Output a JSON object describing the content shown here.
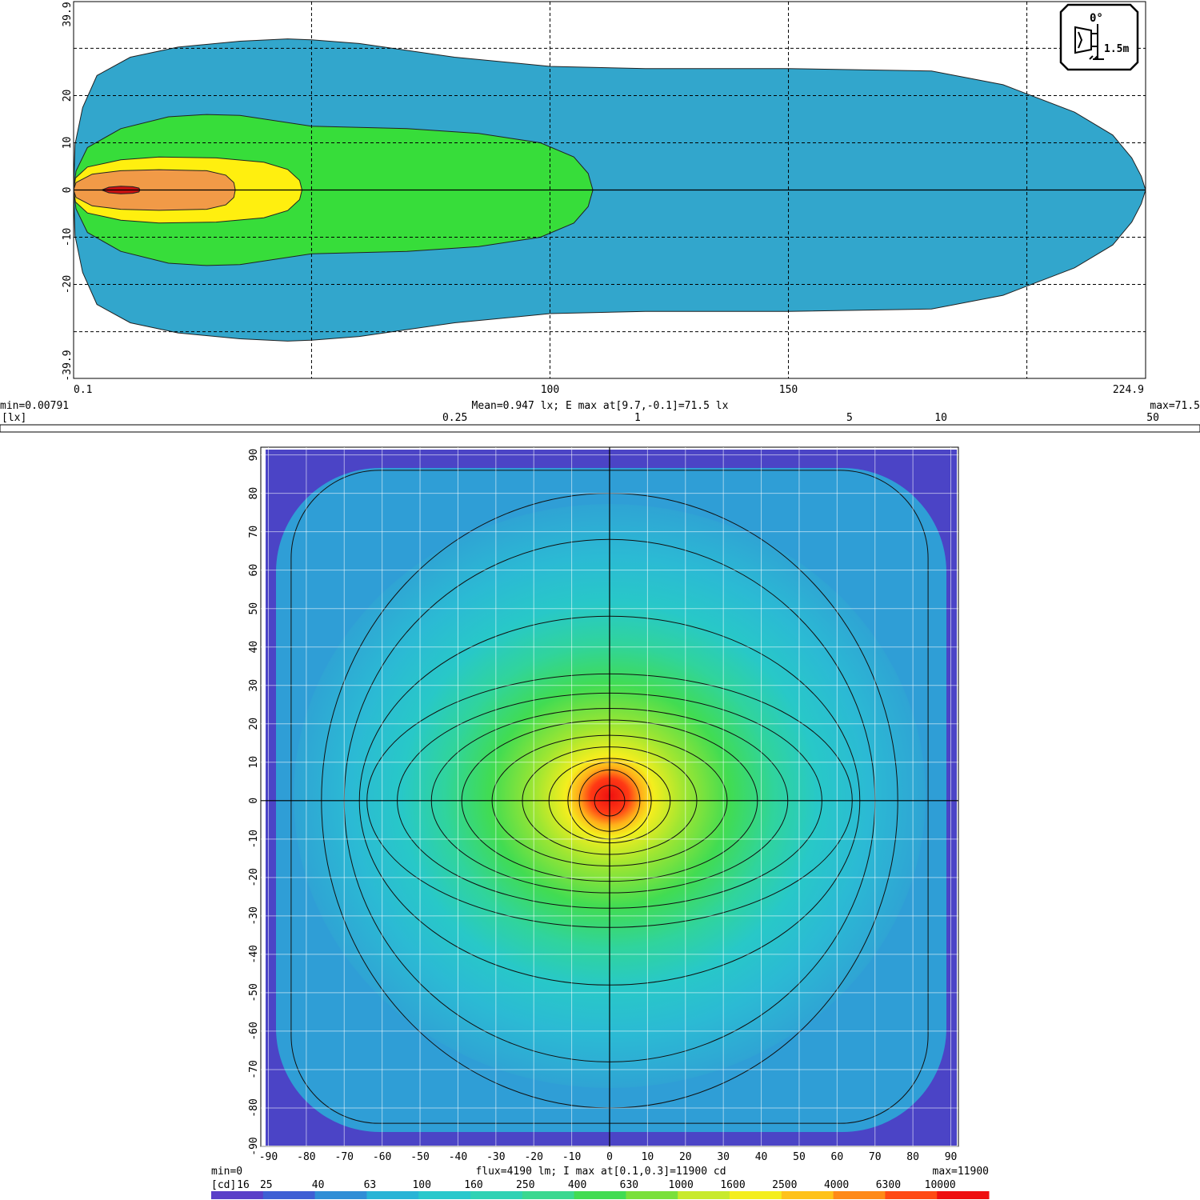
{
  "chart_data": [
    {
      "type": "heatmap",
      "subtype": "illuminance contour",
      "x_ticks": [
        "0.1",
        "100",
        "150",
        "224.9"
      ],
      "x_tick_values": [
        0.1,
        100,
        150,
        224.9
      ],
      "y_ticks": [
        "39.9",
        "20",
        "10",
        "0",
        "-10",
        "-20",
        "-39.9"
      ],
      "y_tick_values": [
        39.9,
        20,
        10,
        0,
        -10,
        -20,
        -39.9
      ],
      "xlim": [
        0.1,
        224.9
      ],
      "ylim": [
        -39.9,
        39.9
      ],
      "grid": true,
      "min_label": "min=0.00791",
      "max_label": "max=71.5",
      "stats": "Mean=0.947 lx; E max at[9.7,-0.1]=71.5 lx",
      "unit_label": "[lx]",
      "legend_ticks": [
        "0.25",
        "1",
        "5",
        "10",
        "50"
      ],
      "legend_tick_values": [
        0.25,
        1,
        5,
        10,
        50
      ],
      "legend_tick_colors": [
        "#2fa7cf",
        "#3fd14a",
        "#ffee00",
        "#ff9933",
        "#dd1111"
      ],
      "contour_levels": [
        {
          "level": 0.25,
          "color": "#32a6cc",
          "x_end": 224.9,
          "half_width": 32
        },
        {
          "level": 1,
          "color": "#37dd3a",
          "x_end": 109,
          "half_width": 16
        },
        {
          "level": 5,
          "color": "#ffef0f",
          "x_end": 48,
          "half_width": 7
        },
        {
          "level": 10,
          "color": "#f19a47",
          "x_end": 34,
          "half_width": 4.3
        },
        {
          "level": 50,
          "color": "#cc1111",
          "x_end": 14,
          "half_width": 0.8
        }
      ],
      "badge": {
        "angle": "0°",
        "height": "1.5m",
        "icon": "lamp-mounting-icon"
      }
    },
    {
      "type": "heatmap",
      "subtype": "luminous intensity distribution",
      "x_ticks": [
        "-90",
        "-80",
        "-70",
        "-60",
        "-50",
        "-40",
        "-30",
        "-20",
        "-10",
        "0",
        "10",
        "20",
        "30",
        "40",
        "50",
        "60",
        "70",
        "80",
        "90"
      ],
      "y_ticks": [
        "90",
        "80",
        "70",
        "60",
        "50",
        "40",
        "30",
        "20",
        "10",
        "0",
        "-10",
        "-20",
        "-30",
        "-40",
        "-50",
        "-60",
        "-70",
        "-80",
        "-90"
      ],
      "xlim": [
        -92,
        92
      ],
      "ylim": [
        -90,
        92
      ],
      "grid": true,
      "min_label": "min=0",
      "max_label": "max=11900",
      "stats": "flux=4190 lm; I max at[0.1,0.3]=11900 cd",
      "unit_label": "[cd]",
      "legend_ticks": [
        "16",
        "25",
        "40",
        "63",
        "100",
        "160",
        "250",
        "400",
        "630",
        "1000",
        "1600",
        "2500",
        "4000",
        "6300",
        "10000"
      ],
      "legend_colors": [
        "#5a3fc8",
        "#3e5fd4",
        "#2f8ed6",
        "#29b4d6",
        "#28c8cc",
        "#2fd2b4",
        "#3ad890",
        "#41dc52",
        "#7ae03a",
        "#c8ea2c",
        "#f4ee1e",
        "#ffc21a",
        "#ff8a18",
        "#ff4a14",
        "#ee1010"
      ],
      "peak": {
        "x": 0.1,
        "y": 0.3,
        "value": 11900
      }
    }
  ]
}
